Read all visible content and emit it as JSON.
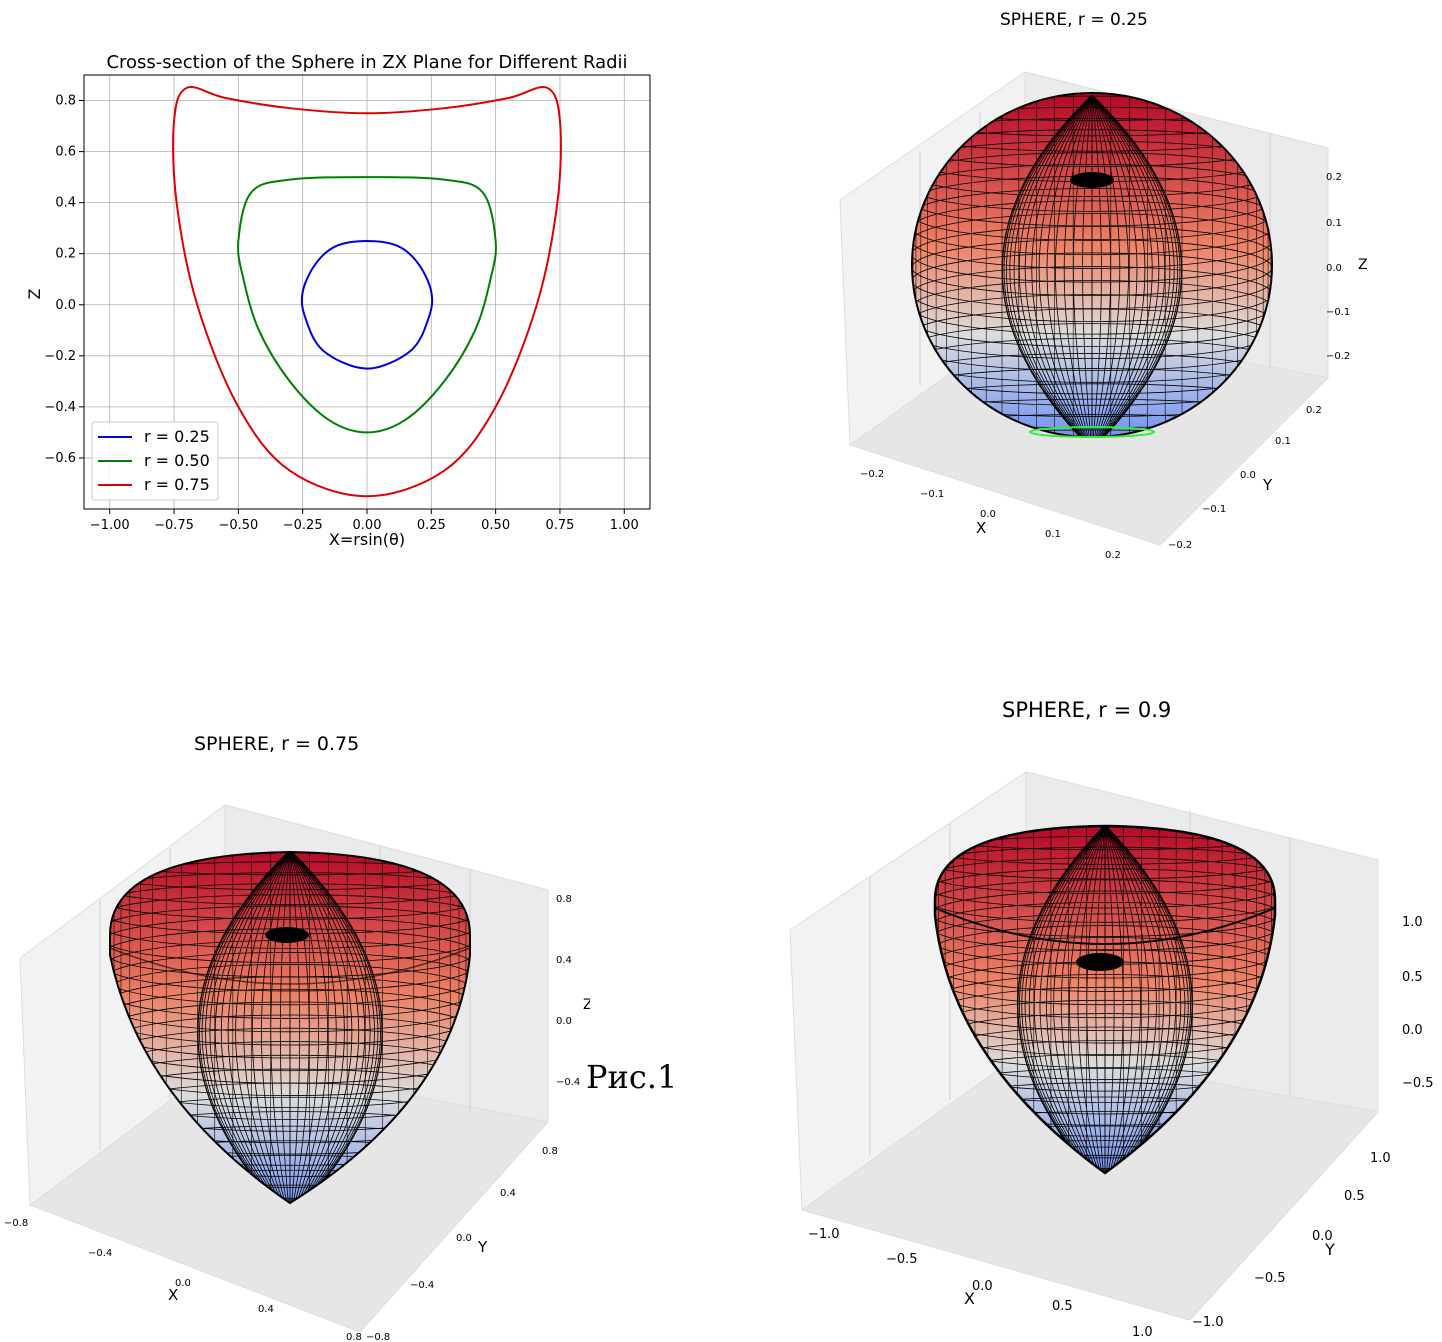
{
  "figure_caption": "Рис.1",
  "chart_data": [
    {
      "type": "line",
      "title": "Cross-section of the Sphere in ZX Plane for Different Radii",
      "xlabel": "X=rsin(θ)",
      "ylabel": "Z",
      "xlim": [
        -1.1,
        1.1
      ],
      "ylim": [
        -0.8,
        0.9
      ],
      "xticks": [
        "−1.00",
        "−0.75",
        "−0.50",
        "−0.25",
        "0.00",
        "0.25",
        "0.50",
        "0.75",
        "1.00"
      ],
      "yticks": [
        "−0.6",
        "−0.4",
        "−0.2",
        "0.0",
        "0.2",
        "0.4",
        "0.6",
        "0.8"
      ],
      "grid": true,
      "legend": "lower-left",
      "series": [
        {
          "name": "r = 0.25",
          "color": "#0000dd",
          "x": [
            0.0,
            0.12,
            0.2,
            0.25,
            0.24,
            0.17,
            0.0,
            -0.17,
            -0.24,
            -0.25,
            -0.2,
            -0.12,
            0.0
          ],
          "y": [
            0.25,
            0.23,
            0.16,
            0.05,
            -0.05,
            -0.18,
            -0.25,
            -0.18,
            -0.05,
            0.05,
            0.16,
            0.23,
            0.25
          ]
        },
        {
          "name": "r = 0.50",
          "color": "#008000",
          "x": [
            0.0,
            0.3,
            0.45,
            0.5,
            0.48,
            0.42,
            0.3,
            0.15,
            0.0,
            -0.15,
            -0.3,
            -0.42,
            -0.48,
            -0.5,
            -0.45,
            -0.3,
            0.0
          ],
          "y": [
            0.5,
            0.49,
            0.44,
            0.25,
            0.1,
            -0.1,
            -0.3,
            -0.45,
            -0.5,
            -0.45,
            -0.3,
            -0.1,
            0.1,
            0.25,
            0.44,
            0.49,
            0.5
          ]
        },
        {
          "name": "r = 0.75",
          "color": "#dd0000",
          "x": [
            0.0,
            0.3,
            0.55,
            0.7,
            0.75,
            0.74,
            0.66,
            0.5,
            0.3,
            0.0,
            -0.3,
            -0.5,
            -0.66,
            -0.74,
            -0.75,
            -0.7,
            -0.55,
            -0.3,
            0.0
          ],
          "y": [
            0.75,
            0.77,
            0.81,
            0.85,
            0.72,
            0.4,
            0.0,
            -0.4,
            -0.65,
            -0.75,
            -0.65,
            -0.4,
            0.0,
            0.4,
            0.72,
            0.85,
            0.81,
            0.77,
            0.75
          ]
        }
      ]
    },
    {
      "type": "surface3d",
      "title": "SPHERE, r = 0.25",
      "xlabel": "X",
      "ylabel": "Y",
      "zlabel": "Z",
      "xticks": [
        "−0.2",
        "−0.1",
        "0.0",
        "0.1",
        "0.2"
      ],
      "yticks": [
        "−0.2",
        "−0.1",
        "0.0",
        "0.1",
        "0.2"
      ],
      "zticks": [
        "−0.2",
        "−0.1",
        "0.0",
        "0.1",
        "0.2"
      ],
      "colormap": "coolwarm"
    },
    {
      "type": "surface3d",
      "title": "SPHERE, r = 0.75",
      "xlabel": "X",
      "ylabel": "Y",
      "zlabel": "Z",
      "xticks": [
        "−0.8",
        "−0.4",
        "0.0",
        "0.4",
        "0.8"
      ],
      "yticks": [
        "−0.8",
        "−0.4",
        "0.0",
        "0.4",
        "0.8"
      ],
      "zticks": [
        "−0.4",
        "0.0",
        "0.4",
        "0.8"
      ],
      "colormap": "coolwarm"
    },
    {
      "type": "surface3d",
      "title": "SPHERE, r = 0.9",
      "xlabel": "X",
      "ylabel": "Y",
      "zlabel": "",
      "xticks": [
        "−1.0",
        "−0.5",
        "0.0",
        "0.5",
        "1.0"
      ],
      "yticks": [
        "−1.0",
        "−0.5",
        "0.0",
        "0.5",
        "1.0"
      ],
      "zticks": [
        "−0.5",
        "0.0",
        "0.5",
        "1.0"
      ],
      "colormap": "coolwarm"
    }
  ]
}
